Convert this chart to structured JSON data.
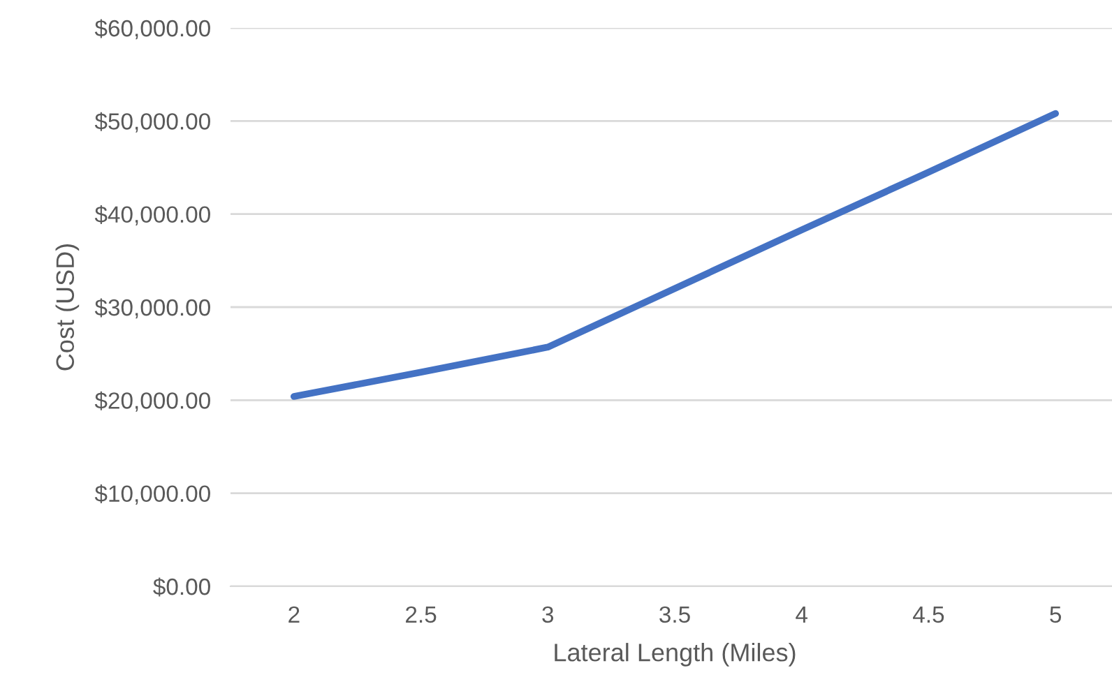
{
  "chart_data": {
    "type": "line",
    "xlabel": "Lateral Length (Miles)",
    "ylabel": "Cost (USD)",
    "categories": [
      "2",
      "2.5",
      "3",
      "3.5",
      "4",
      "4.5",
      "5"
    ],
    "series": [
      {
        "color": "#4472c4",
        "values": [
          20400,
          23000,
          25700,
          32000,
          38300,
          44500,
          50800
        ]
      }
    ],
    "ylim": [
      0,
      60000
    ],
    "yticks": [
      {
        "value": 0,
        "label": "$0.00"
      },
      {
        "value": 10000,
        "label": "$10,000.00"
      },
      {
        "value": 20000,
        "label": "$20,000.00"
      },
      {
        "value": 30000,
        "label": "$30,000.00"
      },
      {
        "value": 40000,
        "label": "$40,000.00"
      },
      {
        "value": 50000,
        "label": "$50,000.00"
      },
      {
        "value": 60000,
        "label": "$60,000.00"
      }
    ],
    "grid": "y",
    "marker": "none",
    "line_style": "solid"
  }
}
